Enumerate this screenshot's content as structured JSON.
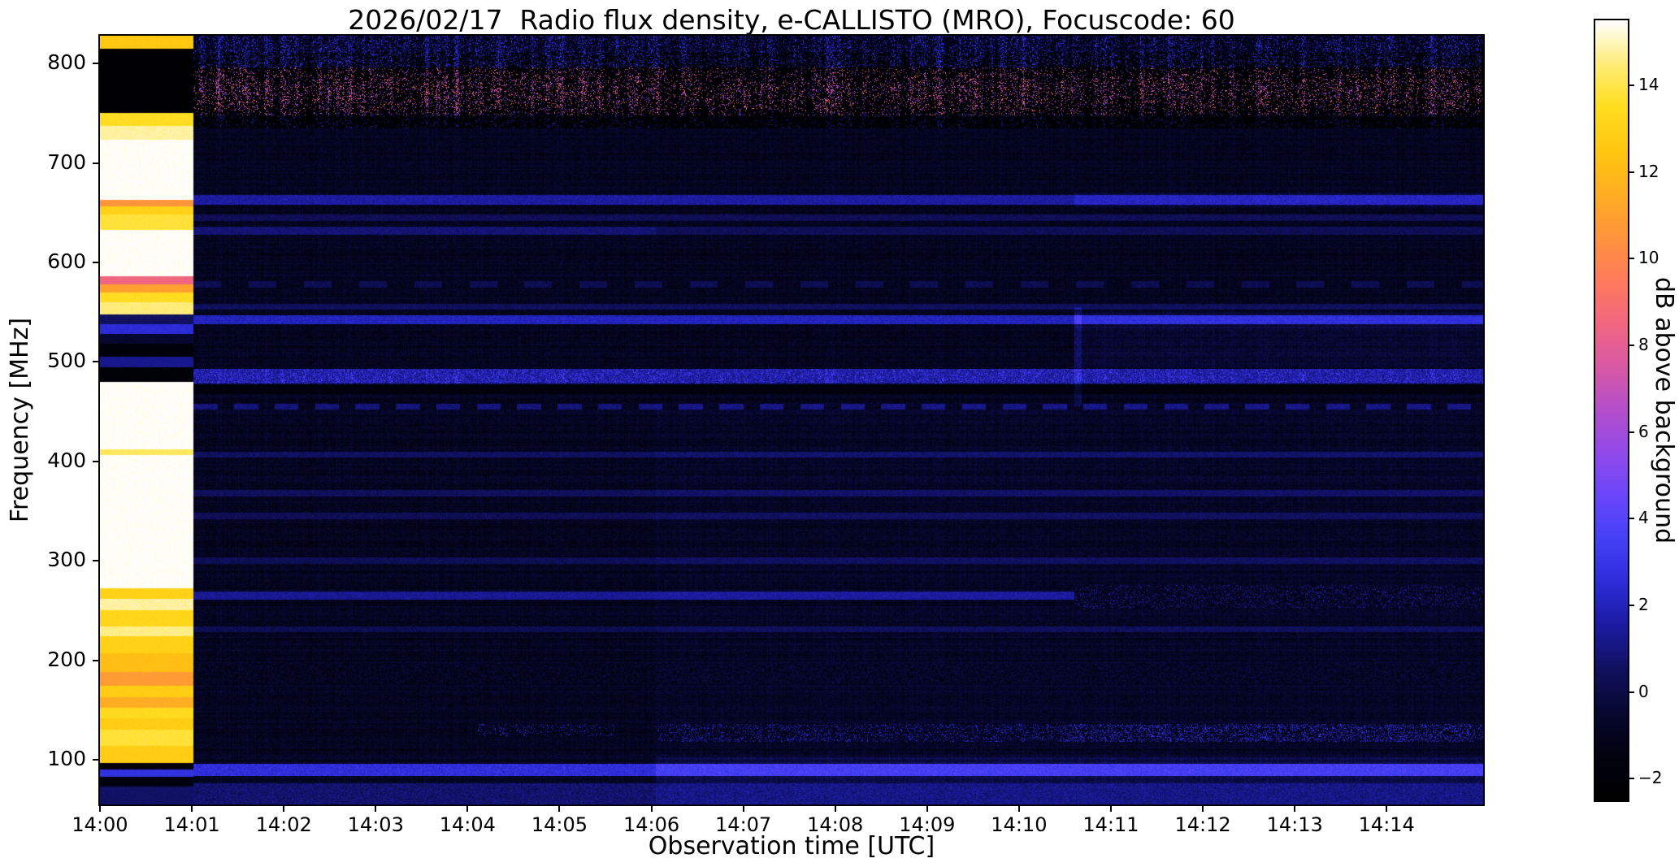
{
  "chart_data": {
    "type": "heatmap",
    "title": "2026/02/17  Radio flux density, e-CALLISTO (MRO), Focuscode: 60",
    "xlabel": "Observation time [UTC]",
    "ylabel": "Frequency [MHz]",
    "colorbar_label": "dB above background",
    "x_tick_labels": [
      "14:00",
      "14:01",
      "14:02",
      "14:03",
      "14:04",
      "14:05",
      "14:06",
      "14:07",
      "14:08",
      "14:09",
      "14:10",
      "14:11",
      "14:12",
      "14:13",
      "14:14"
    ],
    "y_tick_values": [
      100,
      200,
      300,
      400,
      500,
      600,
      700,
      800
    ],
    "colorbar_ticks": [
      {
        "v": 14,
        "label": "14"
      },
      {
        "v": 12,
        "label": "12"
      },
      {
        "v": 10,
        "label": "10"
      },
      {
        "v": 8,
        "label": "8"
      },
      {
        "v": 6,
        "label": "6"
      },
      {
        "v": 4,
        "label": "4"
      },
      {
        "v": 2,
        "label": "2"
      },
      {
        "v": 0,
        "label": "0"
      },
      {
        "v": -2,
        "label": "−2"
      }
    ],
    "x_range_minutes": [
      0,
      15.05
    ],
    "y_range_mhz": [
      55,
      828
    ],
    "color_range_db": [
      -2.5,
      15.5
    ],
    "background_db": -1.0,
    "background_noise_db": 1.2,
    "colormap_stops": [
      [
        -2.5,
        "#000000"
      ],
      [
        -1.5,
        "#02020f"
      ],
      [
        -0.5,
        "#070730"
      ],
      [
        0.5,
        "#10105e"
      ],
      [
        1.5,
        "#1b1ba0"
      ],
      [
        2.5,
        "#2c2cd8"
      ],
      [
        3.5,
        "#4240f5"
      ],
      [
        4.5,
        "#6a46fb"
      ],
      [
        5.5,
        "#9149ea"
      ],
      [
        6.5,
        "#b44ecb"
      ],
      [
        7.5,
        "#d858a5"
      ],
      [
        8.5,
        "#f26681"
      ],
      [
        9.5,
        "#ff7a5c"
      ],
      [
        10.5,
        "#ff943c"
      ],
      [
        11.5,
        "#ffae22"
      ],
      [
        12.5,
        "#ffc70f"
      ],
      [
        13.5,
        "#ffdd1e"
      ],
      [
        14.5,
        "#ffec78"
      ],
      [
        15.5,
        "#ffffff"
      ]
    ],
    "calibration": {
      "t_end": 1.02,
      "noise_db": 0.5,
      "segments": [
        {
          "f": [
            815,
            828
          ],
          "db": 12.6
        },
        {
          "f": [
            750,
            815
          ],
          "db": -2.3
        },
        {
          "f": [
            737,
            750
          ],
          "db": 13.5
        },
        {
          "f": [
            723,
            737
          ],
          "db": 14.8
        },
        {
          "f": [
            663,
            723
          ],
          "db": 15.5
        },
        {
          "f": [
            656,
            663
          ],
          "db": 10.5
        },
        {
          "f": [
            648,
            656
          ],
          "db": 13.0
        },
        {
          "f": [
            633,
            648
          ],
          "db": 13.8
        },
        {
          "f": [
            586,
            633
          ],
          "db": 15.5
        },
        {
          "f": [
            578,
            586
          ],
          "db": 8.5
        },
        {
          "f": [
            570,
            578
          ],
          "db": 11.0
        },
        {
          "f": [
            560,
            570
          ],
          "db": 13.5
        },
        {
          "f": [
            548,
            560
          ],
          "db": 14.5
        },
        {
          "f": [
            538,
            548
          ],
          "db": 0.5
        },
        {
          "f": [
            528,
            538
          ],
          "db": 2.5
        },
        {
          "f": [
            518,
            528
          ],
          "db": -0.5
        },
        {
          "f": [
            505,
            518
          ],
          "db": -1.8
        },
        {
          "f": [
            495,
            505
          ],
          "db": 1.2
        },
        {
          "f": [
            480,
            495
          ],
          "db": -2.0
        },
        {
          "f": [
            412,
            480
          ],
          "db": 15.5
        },
        {
          "f": [
            406,
            412
          ],
          "db": 14.2
        },
        {
          "f": [
            272,
            406
          ],
          "db": 15.5
        },
        {
          "f": [
            262,
            272
          ],
          "db": 13.0
        },
        {
          "f": [
            250,
            262
          ],
          "db": 14.8
        },
        {
          "f": [
            234,
            250
          ],
          "db": 13.2
        },
        {
          "f": [
            224,
            234
          ],
          "db": 14.6
        },
        {
          "f": [
            207,
            224
          ],
          "db": 13.0
        },
        {
          "f": [
            188,
            207
          ],
          "db": 12.2
        },
        {
          "f": [
            174,
            188
          ],
          "db": 10.8
        },
        {
          "f": [
            163,
            174
          ],
          "db": 12.8
        },
        {
          "f": [
            152,
            163
          ],
          "db": 11.5
        },
        {
          "f": [
            142,
            152
          ],
          "db": 13.4
        },
        {
          "f": [
            130,
            142
          ],
          "db": 12.8
        },
        {
          "f": [
            114,
            130
          ],
          "db": 13.8
        },
        {
          "f": [
            97,
            114
          ],
          "db": 12.8
        },
        {
          "f": [
            90,
            97
          ],
          "db": -2.0
        },
        {
          "f": [
            83,
            90
          ],
          "db": 2.8
        },
        {
          "f": [
            73,
            83
          ],
          "db": -1.5
        },
        {
          "f": [
            55,
            73
          ],
          "db": 0.6
        }
      ]
    },
    "bands": [
      {
        "name": "low-frequency-floor",
        "f": [
          55,
          76
        ],
        "t": [
          1.02,
          15.05
        ],
        "mode": "set",
        "db": 0.7,
        "noise": 1.4
      },
      {
        "name": "line-90mhz",
        "f": [
          84,
          96
        ],
        "t": [
          1.02,
          15.05
        ],
        "mode": "set",
        "db": 2.6,
        "noise": 1.2
      },
      {
        "name": "wideband-80-100-after-1406",
        "f": [
          76,
          102
        ],
        "t": [
          6.05,
          15.05
        ],
        "mode": "add",
        "db": 0.9
      },
      {
        "name": "floor-brighten-after-1406",
        "f": [
          55,
          76
        ],
        "t": [
          6.05,
          15.05
        ],
        "mode": "add",
        "db": 0.4
      },
      {
        "name": "speckle-120-135-after-1406",
        "f": [
          118,
          136
        ],
        "t": [
          6.05,
          15.05
        ],
        "mode": "max",
        "db": -2,
        "noise": 0,
        "speckle": {
          "p": 0.15,
          "db": [
            1.2,
            2.6
          ]
        }
      },
      {
        "name": "speckle-120-135-late",
        "f": [
          118,
          136
        ],
        "t": [
          10.5,
          15.05
        ],
        "mode": "max",
        "db": -2,
        "noise": 0,
        "speckle": {
          "p": 0.1,
          "db": [
            2.0,
            3.2
          ]
        }
      },
      {
        "name": "blobs-128mhz-1404",
        "f": [
          124,
          136
        ],
        "t": [
          4.1,
          5.6
        ],
        "mode": "max",
        "db": -2,
        "noise": 0,
        "speckle": {
          "p": 0.1,
          "db": [
            1.4,
            2.6
          ]
        }
      },
      {
        "name": "textured-band-185mhz",
        "f": [
          176,
          196
        ],
        "t": [
          1.02,
          15.05
        ],
        "mode": "set",
        "db": -1.0,
        "noise": 1.9
      },
      {
        "name": "line-231mhz",
        "f": [
          228,
          234
        ],
        "t": [
          1.02,
          15.05
        ],
        "mode": "max",
        "db": 0.2,
        "noise": 1.0
      },
      {
        "name": "line-265mhz",
        "f": [
          261,
          269
        ],
        "t": [
          1.02,
          15.05
        ],
        "mode": "max",
        "db": 1.3,
        "noise": 0.9
      },
      {
        "name": "dark-textured-265mhz-after-1411",
        "f": [
          252,
          276
        ],
        "t": [
          10.6,
          15.05
        ],
        "mode": "set",
        "db": -1.1,
        "noise": 1.7,
        "speckle": {
          "p": 0.12,
          "db": [
            0.5,
            2.0
          ]
        }
      },
      {
        "name": "line-300mhz",
        "f": [
          297,
          303
        ],
        "t": [
          1.02,
          15.05
        ],
        "mode": "max",
        "db": 0.3,
        "noise": 0.9
      },
      {
        "name": "line-345mhz",
        "f": [
          342,
          348
        ],
        "t": [
          1.02,
          15.05
        ],
        "mode": "max",
        "db": 0.3,
        "noise": 0.9
      },
      {
        "name": "line-368mhz",
        "f": [
          365,
          371
        ],
        "t": [
          1.02,
          15.05
        ],
        "mode": "max",
        "db": 0.4,
        "noise": 0.9
      },
      {
        "name": "line-407mhz",
        "f": [
          404,
          410
        ],
        "t": [
          1.02,
          15.05
        ],
        "mode": "max",
        "db": 0.5,
        "noise": 0.9
      },
      {
        "name": "dashed-line-455mhz",
        "f": [
          452,
          458
        ],
        "t": [
          1.02,
          15.05
        ],
        "mode": "max",
        "db": 0.9,
        "noise": 0.9,
        "dash": [
          0.26,
          0.18
        ]
      },
      {
        "name": "dark-band-472mhz",
        "f": [
          468,
          477
        ],
        "t": [
          1.02,
          15.05
        ],
        "mode": "set",
        "db": -1.6,
        "noise": 0.9
      },
      {
        "name": "noisy-band-485mhz",
        "f": [
          478,
          493
        ],
        "t": [
          1.02,
          15.05
        ],
        "mode": "set",
        "db": 1.6,
        "noise": 2.0,
        "speckle": {
          "p": 0.3,
          "db": [
            2.2,
            4.4
          ]
        },
        "col_mod": true
      },
      {
        "name": "region-500-535-after-1410",
        "f": [
          495,
          535
        ],
        "t": [
          10.6,
          15.05
        ],
        "mode": "add",
        "db": 0.5
      },
      {
        "name": "line-543mhz",
        "f": [
          538,
          547
        ],
        "t": [
          1.02,
          15.05
        ],
        "mode": "max",
        "db": 2.0,
        "noise": 1.0
      },
      {
        "name": "line-543mhz-brighter-late",
        "f": [
          534,
          550
        ],
        "t": [
          10.6,
          15.05
        ],
        "mode": "add",
        "db": 0.7
      },
      {
        "name": "line-555mhz",
        "f": [
          553,
          558
        ],
        "t": [
          1.02,
          15.05
        ],
        "mode": "max",
        "db": 0.4,
        "noise": 0.9
      },
      {
        "name": "dashed-line-578mhz",
        "f": [
          575,
          581
        ],
        "t": [
          1.02,
          15.05
        ],
        "mode": "max",
        "db": 0.2,
        "noise": 0.9,
        "dash": [
          0.3,
          0.3
        ]
      },
      {
        "name": "line-632mhz-early",
        "f": [
          628,
          636
        ],
        "t": [
          1.02,
          6.05
        ],
        "mode": "max",
        "db": 0.8,
        "noise": 0.9
      },
      {
        "name": "line-632mhz-late",
        "f": [
          628,
          636
        ],
        "t": [
          6.05,
          15.05
        ],
        "mode": "max",
        "db": 0.3,
        "noise": 0.9
      },
      {
        "name": "line-645mhz",
        "f": [
          642,
          648
        ],
        "t": [
          1.02,
          15.05
        ],
        "mode": "max",
        "db": 0.3,
        "noise": 0.9
      },
      {
        "name": "line-663mhz",
        "f": [
          658,
          668
        ],
        "t": [
          1.02,
          15.05
        ],
        "mode": "max",
        "db": 1.5,
        "noise": 1.0
      },
      {
        "name": "line-663mhz-brighter-late",
        "f": [
          655,
          670
        ],
        "t": [
          10.6,
          15.05
        ],
        "mode": "add",
        "db": 0.6
      },
      {
        "name": "rfi-black-base-735-812",
        "f": [
          735,
          812
        ],
        "t": [
          1.02,
          15.05
        ],
        "mode": "set",
        "db": -2.1,
        "noise": 0.5
      },
      {
        "name": "rfi-pink-speckle-750-795",
        "f": [
          748,
          796
        ],
        "t": [
          1.02,
          15.05
        ],
        "mode": "max",
        "db": -2.2,
        "noise": 0,
        "speckle": {
          "p": 0.32,
          "db": [
            4.5,
            10.0
          ]
        },
        "col_mod": true,
        "freq_center": 772,
        "freq_width": 22
      },
      {
        "name": "rfi-blue-speckle-796-828",
        "f": [
          796,
          828
        ],
        "t": [
          1.02,
          15.05
        ],
        "mode": "max",
        "db": -1.8,
        "noise": 1.0,
        "speckle": {
          "p": 0.4,
          "db": [
            1.0,
            3.4
          ]
        },
        "col_mod": true
      },
      {
        "name": "rfi-blue-speckle-735-750",
        "f": [
          735,
          750
        ],
        "t": [
          1.02,
          15.05
        ],
        "mode": "max",
        "db": -2.2,
        "noise": 0,
        "speckle": {
          "p": 0.12,
          "db": [
            0.5,
            2.5
          ]
        },
        "col_mod": true
      },
      {
        "name": "vertical-streak-1410",
        "f": [
          455,
          555
        ],
        "t": [
          10.6,
          10.68
        ],
        "mode": "add",
        "db": 1.0
      },
      {
        "name": "low-freq-brighten-after-1406",
        "f": [
          102,
          460
        ],
        "t": [
          6.05,
          15.05
        ],
        "mode": "add",
        "db": 0.2
      }
    ]
  }
}
